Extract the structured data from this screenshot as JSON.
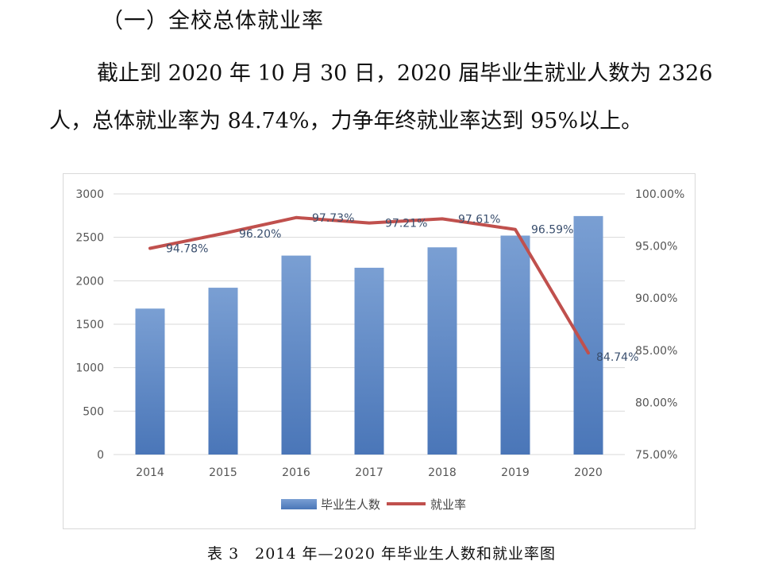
{
  "heading": "（一）全校总体就业率",
  "paragraph": {
    "line1": "截止到 2020 年 10 月 30 日，2020 届毕业生就业人数为 2326",
    "line2": "人，总体就业率为 84.74%，力争年终就业率达到 95%以上。"
  },
  "caption": "表 3　2014 年—2020 年毕业生人数和就业率图",
  "colors": {
    "bar": "#4a76b8",
    "bar_light": "#7a9fd3",
    "line": "#c0504d",
    "grid": "#d9d9d9"
  },
  "chart_data": {
    "type": "bar",
    "categories": [
      "2014",
      "2015",
      "2016",
      "2017",
      "2018",
      "2019",
      "2020"
    ],
    "series": [
      {
        "name": "毕业生人数",
        "type": "bar",
        "axis": "left",
        "values": [
          1680,
          1920,
          2290,
          2150,
          2385,
          2520,
          2745
        ]
      },
      {
        "name": "就业率",
        "type": "line",
        "axis": "right",
        "values": [
          94.78,
          96.2,
          97.73,
          97.21,
          97.61,
          96.59,
          84.74
        ],
        "labels": [
          "94.78%",
          "96.20%",
          "97.73%",
          "97.21%",
          "97.61%",
          "96.59%",
          "84.74%"
        ]
      }
    ],
    "y_left": {
      "min": 0,
      "max": 3000,
      "ticks": [
        "0",
        "500",
        "1000",
        "1500",
        "2000",
        "2500",
        "3000"
      ]
    },
    "y_right": {
      "min": 75,
      "max": 100,
      "ticks": [
        "75.00%",
        "80.00%",
        "85.00%",
        "90.00%",
        "95.00%",
        "100.00%"
      ]
    },
    "grid": true,
    "legend": "bottom"
  }
}
